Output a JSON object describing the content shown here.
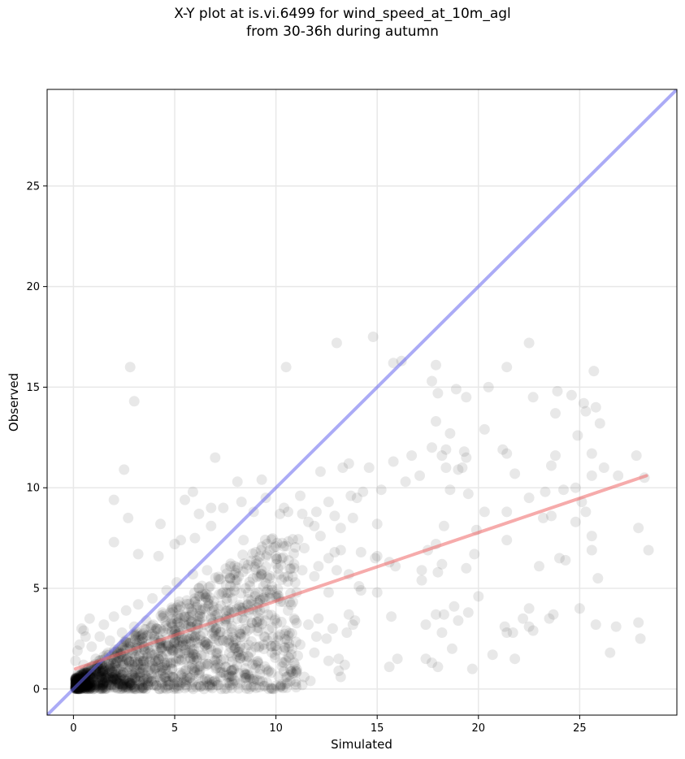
{
  "chart_data": {
    "type": "scatter",
    "title": "X-Y plot at is.vi.6499 for wind_speed_at_10m_agl",
    "subtitle": "from 30-36h during autumn",
    "xlabel": "Simulated",
    "ylabel": "Observed",
    "xlim": [
      -1.3,
      29.8
    ],
    "ylim": [
      -1.3,
      29.8
    ],
    "xticks": [
      "0",
      "5",
      "10",
      "15",
      "20",
      "25"
    ],
    "yticks": [
      "0",
      "5",
      "10",
      "15",
      "20",
      "25"
    ],
    "grid": true,
    "colors": {
      "points": "#000000",
      "identity_line": "#6666ee",
      "fit_line": "#ee6666",
      "grid": "#e8e8e8"
    },
    "identity_line": {
      "x": [
        -1.3,
        29.8
      ],
      "y": [
        -1.3,
        29.8
      ]
    },
    "fit_line": {
      "x": [
        0.1,
        28.3
      ],
      "y": [
        1.0,
        10.6
      ]
    },
    "series": [
      {
        "points": [
          [
            2.8,
            16.0
          ],
          [
            3.0,
            14.3
          ],
          [
            10.5,
            16.0
          ],
          [
            13.0,
            17.2
          ],
          [
            14.8,
            17.5
          ],
          [
            15.8,
            16.2
          ],
          [
            16.2,
            16.3
          ],
          [
            22.5,
            17.2
          ],
          [
            17.9,
            16.1
          ],
          [
            21.4,
            16.0
          ],
          [
            25.7,
            15.8
          ],
          [
            17.7,
            15.3
          ],
          [
            18.0,
            14.7
          ],
          [
            18.9,
            14.9
          ],
          [
            19.4,
            14.5
          ],
          [
            20.5,
            15.0
          ],
          [
            22.7,
            14.5
          ],
          [
            23.9,
            14.8
          ],
          [
            24.6,
            14.6
          ],
          [
            25.2,
            14.2
          ],
          [
            25.8,
            14.0
          ],
          [
            25.3,
            13.8
          ],
          [
            26.0,
            13.2
          ],
          [
            23.8,
            13.7
          ],
          [
            17.9,
            13.3
          ],
          [
            18.6,
            12.7
          ],
          [
            20.3,
            12.9
          ],
          [
            21.2,
            11.9
          ],
          [
            24.9,
            12.6
          ],
          [
            17.7,
            12.0
          ],
          [
            18.4,
            11.9
          ],
          [
            19.3,
            11.8
          ],
          [
            19.4,
            11.5
          ],
          [
            18.2,
            11.6
          ],
          [
            16.7,
            11.6
          ],
          [
            15.8,
            11.3
          ],
          [
            21.4,
            11.7
          ],
          [
            23.6,
            11.1
          ],
          [
            23.8,
            11.6
          ],
          [
            25.6,
            11.7
          ],
          [
            26.2,
            11.0
          ],
          [
            27.8,
            11.6
          ],
          [
            18.4,
            11.0
          ],
          [
            19.0,
            10.9
          ],
          [
            19.2,
            11.0
          ],
          [
            21.8,
            10.7
          ],
          [
            24.8,
            10.0
          ],
          [
            25.6,
            10.6
          ],
          [
            26.9,
            10.6
          ],
          [
            28.2,
            10.5
          ],
          [
            16.4,
            10.3
          ],
          [
            17.1,
            10.6
          ],
          [
            2.5,
            10.9
          ],
          [
            7.0,
            11.5
          ],
          [
            9.3,
            10.4
          ],
          [
            8.1,
            10.3
          ],
          [
            13.6,
            11.2
          ],
          [
            13.3,
            11.0
          ],
          [
            14.6,
            11.0
          ],
          [
            12.2,
            10.8
          ],
          [
            15.2,
            9.9
          ],
          [
            18.6,
            9.9
          ],
          [
            19.5,
            9.7
          ],
          [
            20.3,
            8.8
          ],
          [
            21.4,
            8.8
          ],
          [
            22.5,
            9.5
          ],
          [
            23.3,
            9.8
          ],
          [
            24.2,
            9.9
          ],
          [
            25.1,
            9.3
          ],
          [
            25.3,
            8.8
          ],
          [
            23.2,
            8.5
          ],
          [
            23.6,
            8.6
          ],
          [
            24.8,
            8.3
          ],
          [
            18.3,
            8.1
          ],
          [
            17.9,
            7.2
          ],
          [
            19.9,
            7.9
          ],
          [
            21.4,
            7.4
          ],
          [
            25.6,
            7.6
          ],
          [
            25.6,
            6.9
          ],
          [
            27.9,
            8.0
          ],
          [
            28.4,
            6.9
          ],
          [
            24.0,
            6.5
          ],
          [
            24.3,
            6.4
          ],
          [
            23.0,
            6.1
          ],
          [
            17.5,
            6.9
          ],
          [
            18.2,
            6.2
          ],
          [
            18.0,
            5.8
          ],
          [
            19.4,
            6.0
          ],
          [
            19.8,
            6.7
          ],
          [
            17.2,
            5.4
          ],
          [
            17.2,
            5.9
          ],
          [
            15.6,
            6.3
          ],
          [
            15.9,
            6.1
          ],
          [
            14.9,
            6.5
          ],
          [
            15.0,
            6.6
          ],
          [
            25.9,
            5.5
          ],
          [
            15.0,
            4.8
          ],
          [
            14.1,
            5.1
          ],
          [
            14.2,
            6.8
          ],
          [
            15.0,
            8.2
          ],
          [
            13.7,
            9.6
          ],
          [
            14.0,
            9.5
          ],
          [
            12.6,
            9.3
          ],
          [
            11.2,
            9.6
          ],
          [
            10.4,
            9.0
          ],
          [
            10.2,
            8.7
          ],
          [
            10.6,
            8.8
          ],
          [
            11.3,
            8.7
          ],
          [
            12.0,
            8.8
          ],
          [
            12.9,
            8.6
          ],
          [
            13.2,
            8.0
          ],
          [
            14.3,
            9.8
          ],
          [
            13.8,
            8.5
          ],
          [
            11.6,
            8.3
          ],
          [
            11.9,
            8.1
          ],
          [
            12.2,
            7.6
          ],
          [
            8.9,
            8.8
          ],
          [
            8.3,
            9.3
          ],
          [
            9.5,
            9.5
          ],
          [
            7.4,
            9.0
          ],
          [
            6.8,
            9.0
          ],
          [
            6.2,
            8.7
          ],
          [
            6.8,
            8.1
          ],
          [
            5.9,
            9.8
          ],
          [
            5.5,
            9.4
          ],
          [
            2.0,
            9.4
          ],
          [
            4.3,
            8.2
          ],
          [
            2.7,
            8.5
          ],
          [
            2.0,
            7.3
          ],
          [
            3.2,
            6.7
          ],
          [
            4.2,
            6.6
          ],
          [
            5.3,
            7.4
          ],
          [
            6.0,
            7.5
          ],
          [
            5.0,
            7.2
          ],
          [
            8.4,
            7.4
          ],
          [
            9.0,
            6.8
          ],
          [
            10.0,
            6.6
          ],
          [
            10.5,
            7.1
          ],
          [
            11.4,
            7.0
          ],
          [
            12.9,
            6.8
          ],
          [
            13.2,
            6.9
          ],
          [
            12.6,
            6.5
          ],
          [
            20.0,
            4.6
          ],
          [
            22.5,
            4.0
          ],
          [
            25.0,
            4.0
          ],
          [
            23.7,
            3.7
          ],
          [
            23.5,
            3.5
          ],
          [
            22.2,
            3.5
          ],
          [
            22.7,
            2.9
          ],
          [
            21.4,
            2.8
          ],
          [
            21.7,
            2.8
          ],
          [
            21.3,
            3.1
          ],
          [
            19.5,
            3.8
          ],
          [
            19.0,
            3.4
          ],
          [
            18.8,
            4.1
          ],
          [
            18.3,
            3.7
          ],
          [
            17.9,
            3.7
          ],
          [
            18.2,
            2.8
          ],
          [
            17.4,
            3.2
          ],
          [
            17.4,
            1.5
          ],
          [
            17.7,
            1.3
          ],
          [
            18.0,
            1.1
          ],
          [
            18.7,
            2.0
          ],
          [
            19.7,
            1.0
          ],
          [
            20.7,
            1.7
          ],
          [
            21.8,
            1.5
          ],
          [
            16.0,
            1.5
          ],
          [
            15.6,
            1.1
          ],
          [
            15.7,
            3.6
          ],
          [
            22.5,
            3.1
          ],
          [
            26.5,
            1.8
          ],
          [
            26.8,
            3.1
          ],
          [
            27.9,
            3.3
          ],
          [
            28.0,
            2.5
          ],
          [
            25.8,
            3.2
          ],
          [
            13.9,
            3.4
          ],
          [
            13.5,
            2.8
          ],
          [
            12.8,
            3.0
          ],
          [
            12.5,
            2.5
          ],
          [
            12.0,
            2.6
          ],
          [
            11.6,
            3.2
          ],
          [
            10.9,
            3.5
          ],
          [
            10.5,
            2.9
          ],
          [
            10.1,
            2.6
          ],
          [
            11.2,
            2.2
          ],
          [
            11.9,
            1.8
          ],
          [
            12.6,
            1.4
          ],
          [
            13.1,
            1.5
          ],
          [
            13.4,
            1.2
          ],
          [
            13.1,
            0.9
          ],
          [
            13.2,
            0.6
          ],
          [
            11.4,
            0.6
          ],
          [
            11.0,
            0.8
          ],
          [
            10.5,
            0.6
          ],
          [
            10.9,
            1.3
          ],
          [
            11.7,
            0.4
          ],
          [
            11.3,
            0.2
          ],
          [
            13.8,
            3.2
          ],
          [
            12.1,
            3.5
          ],
          [
            13.6,
            3.7
          ],
          [
            9.1,
            3.8
          ],
          [
            8.6,
            2.9
          ],
          [
            9.6,
            2.4
          ],
          [
            8.2,
            2.0
          ],
          [
            7.8,
            1.6
          ],
          [
            7.5,
            1.1
          ],
          [
            8.5,
            0.7
          ],
          [
            9.2,
            0.4
          ],
          [
            9.9,
            0.0
          ],
          [
            7.0,
            0.4
          ],
          [
            6.5,
            0.5
          ],
          [
            7.3,
            0.0
          ],
          [
            12.6,
            4.8
          ],
          [
            11.9,
            5.6
          ],
          [
            12.1,
            6.1
          ],
          [
            11.3,
            5.9
          ],
          [
            10.6,
            5.6
          ],
          [
            10.9,
            6.2
          ],
          [
            14.2,
            4.9
          ],
          [
            13.6,
            5.7
          ],
          [
            13.0,
            5.9
          ],
          [
            8.5,
            5.0
          ],
          [
            8.0,
            5.4
          ],
          [
            7.4,
            4.8
          ],
          [
            9.3,
            5.7
          ],
          [
            9.8,
            5.1
          ],
          [
            9.2,
            4.4
          ],
          [
            6.6,
            5.9
          ]
        ]
      },
      {
        "note_absent": true,
        "points": [
          [
            0.3,
            0.5
          ],
          [
            0.5,
            1.2
          ],
          [
            0.7,
            0.8
          ],
          [
            0.9,
            2.1
          ],
          [
            1.1,
            1.5
          ],
          [
            1.2,
            0.3
          ],
          [
            1.3,
            2.6
          ],
          [
            1.4,
            1.0
          ],
          [
            1.5,
            3.2
          ],
          [
            1.6,
            0.6
          ],
          [
            1.7,
            1.8
          ],
          [
            1.8,
            2.4
          ],
          [
            1.9,
            0.9
          ],
          [
            2.0,
            3.6
          ],
          [
            2.1,
            1.3
          ],
          [
            2.2,
            2.0
          ],
          [
            2.3,
            0.4
          ],
          [
            2.4,
            2.8
          ],
          [
            2.5,
            1.6
          ],
          [
            2.6,
            3.9
          ],
          [
            2.7,
            1.1
          ],
          [
            2.8,
            2.3
          ],
          [
            2.9,
            0.7
          ],
          [
            3.0,
            3.1
          ],
          [
            3.1,
            1.9
          ],
          [
            3.2,
            4.2
          ],
          [
            3.3,
            1.4
          ],
          [
            3.4,
            2.7
          ],
          [
            3.5,
            0.5
          ],
          [
            3.6,
            3.4
          ],
          [
            3.7,
            2.2
          ],
          [
            3.8,
            1.0
          ],
          [
            3.9,
            4.5
          ],
          [
            4.0,
            1.7
          ],
          [
            4.1,
            3.0
          ],
          [
            4.2,
            2.5
          ],
          [
            4.3,
            0.8
          ],
          [
            4.4,
            3.8
          ],
          [
            4.5,
            1.2
          ],
          [
            4.6,
            4.9
          ],
          [
            4.7,
            2.1
          ],
          [
            4.8,
            3.3
          ],
          [
            4.9,
            0.6
          ],
          [
            5.0,
            2.9
          ],
          [
            5.1,
            5.3
          ],
          [
            5.2,
            1.5
          ],
          [
            5.3,
            3.7
          ],
          [
            5.4,
            2.3
          ],
          [
            5.5,
            0.9
          ],
          [
            5.6,
            4.4
          ],
          [
            5.7,
            1.8
          ],
          [
            5.8,
            3.1
          ],
          [
            5.9,
            5.7
          ],
          [
            6.0,
            2.6
          ],
          [
            6.2,
            1.1
          ],
          [
            6.4,
            4.0
          ],
          [
            6.6,
            2.0
          ],
          [
            6.8,
            3.5
          ],
          [
            7.0,
            1.4
          ],
          [
            7.2,
            4.7
          ],
          [
            7.4,
            2.4
          ],
          [
            7.6,
            3.9
          ],
          [
            7.8,
            0.9
          ],
          [
            8.0,
            5.1
          ],
          [
            8.2,
            2.8
          ],
          [
            8.4,
            1.6
          ],
          [
            8.6,
            4.2
          ],
          [
            8.8,
            3.3
          ],
          [
            9.0,
            1.2
          ],
          [
            9.2,
            5.6
          ],
          [
            9.4,
            2.2
          ],
          [
            9.6,
            3.7
          ],
          [
            9.8,
            1.8
          ],
          [
            10.0,
            4.6
          ],
          [
            10.2,
            2.7
          ],
          [
            10.4,
            1.3
          ],
          [
            10.6,
            3.9
          ],
          [
            10.8,
            2.0
          ],
          [
            0.4,
            0.2
          ],
          [
            0.6,
            0.1
          ],
          [
            0.8,
            0.3
          ],
          [
            1.0,
            0.0
          ],
          [
            0.2,
            0.7
          ],
          [
            0.1,
            1.4
          ],
          [
            0.3,
            2.2
          ],
          [
            0.5,
            2.9
          ],
          [
            0.2,
            1.9
          ],
          [
            0.4,
            3.0
          ],
          [
            0.6,
            2.6
          ],
          [
            0.8,
            3.5
          ]
        ]
      }
    ]
  }
}
